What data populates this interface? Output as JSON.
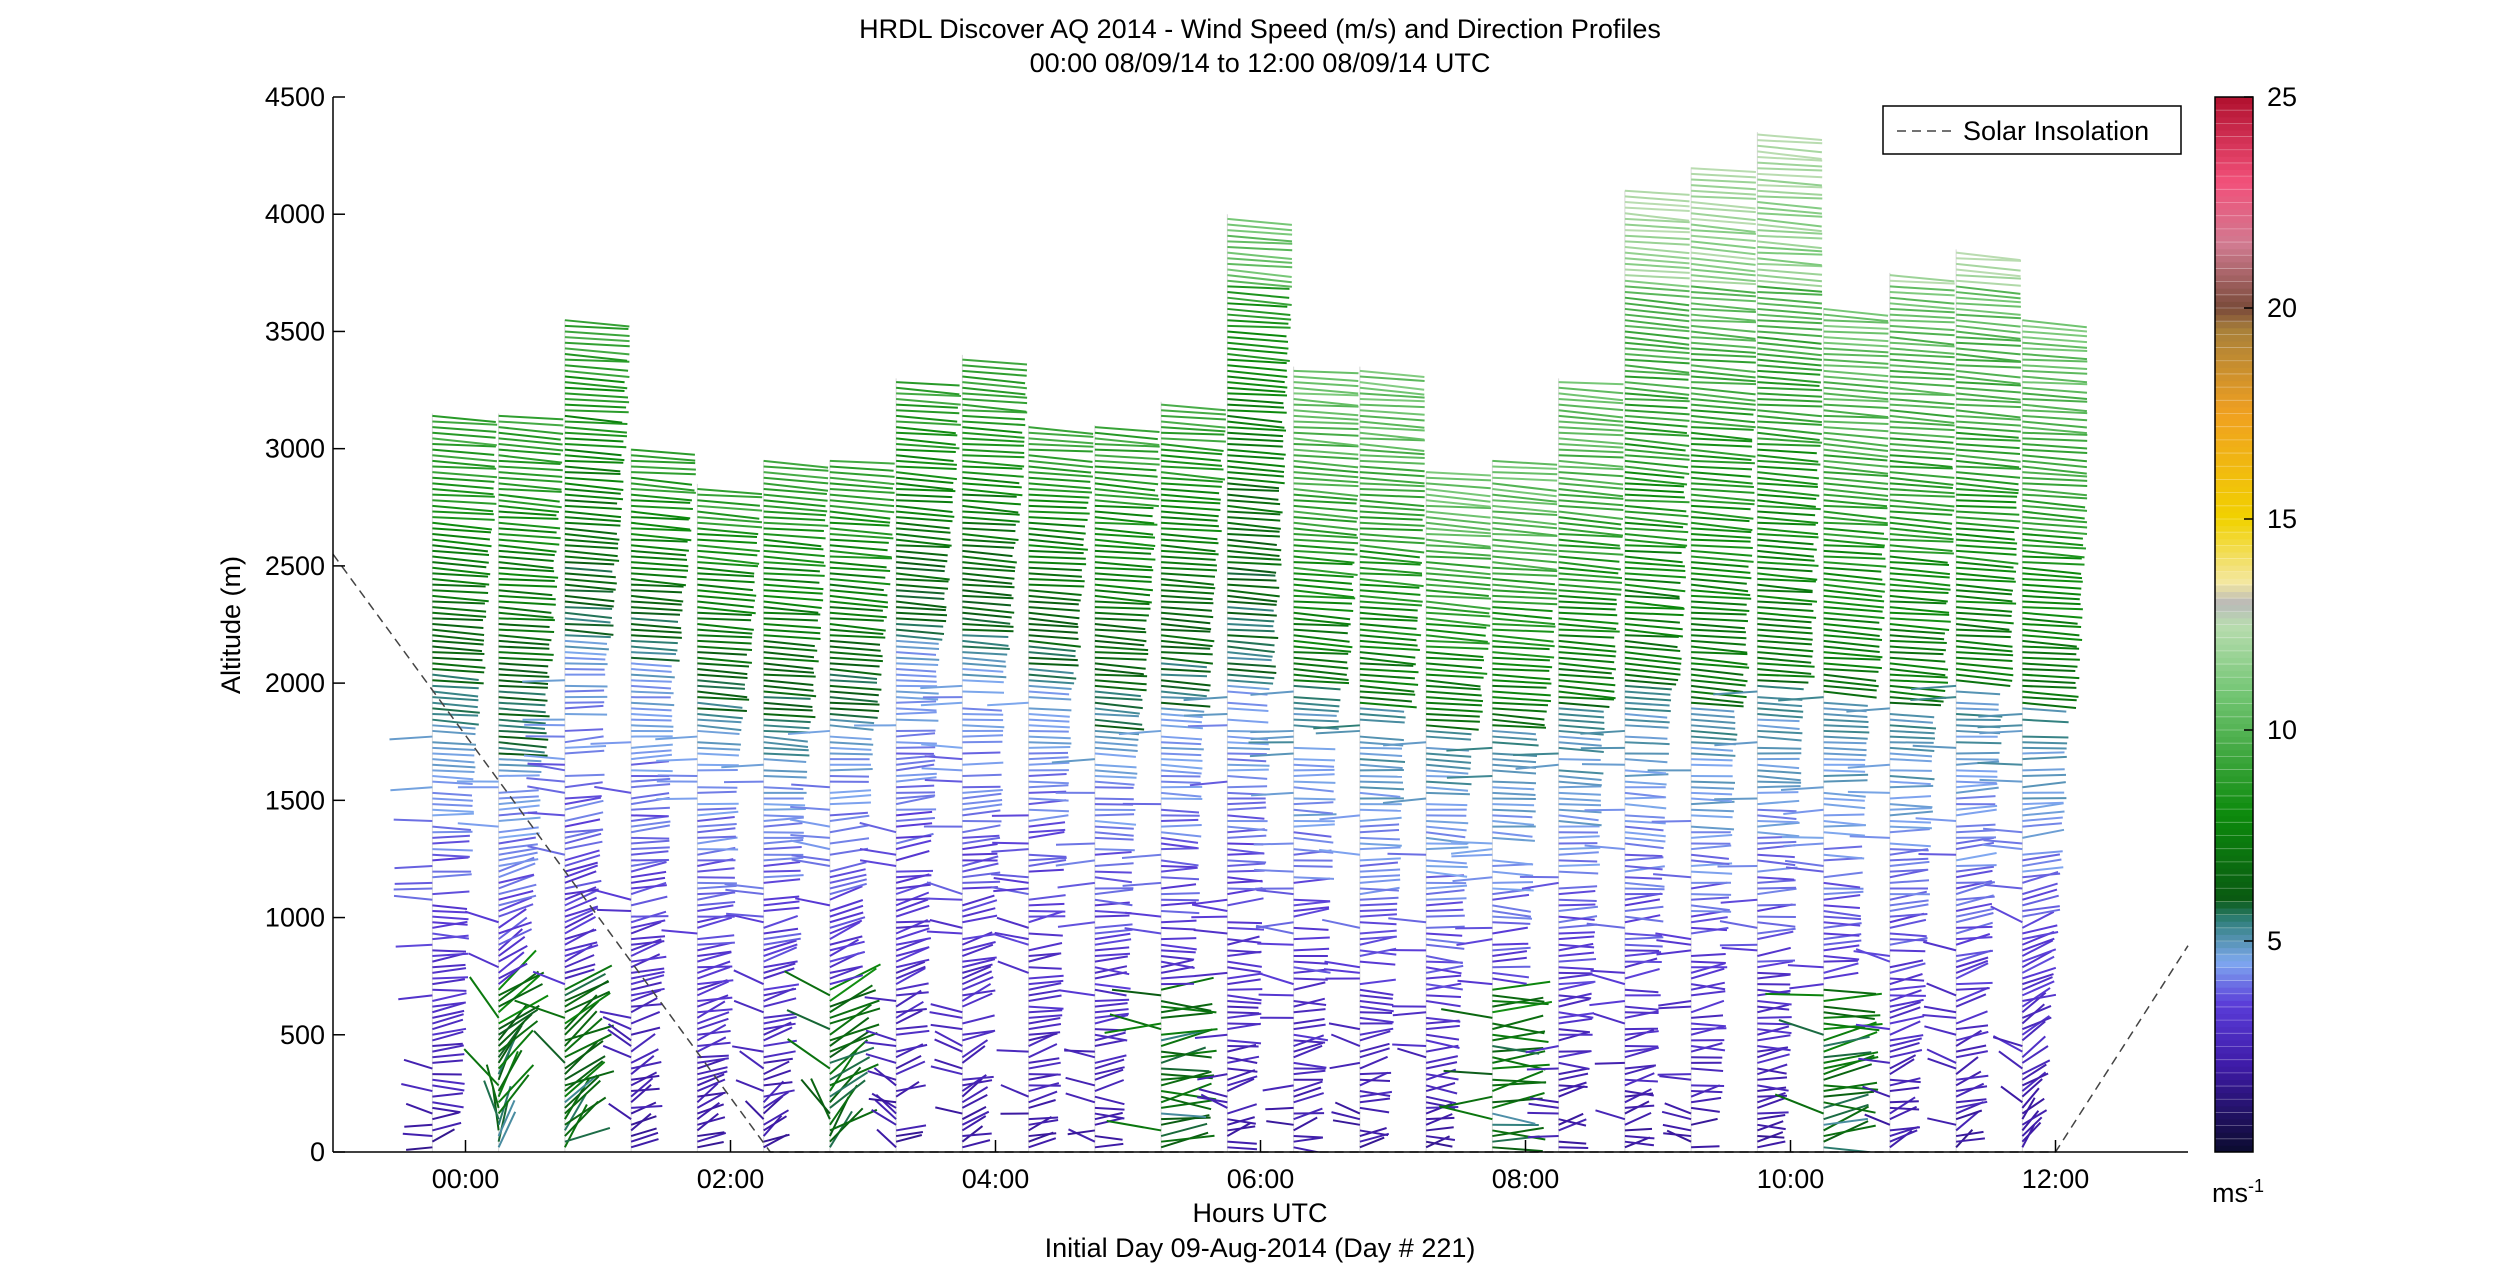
{
  "chart_data": {
    "type": "wind-barb-profile",
    "title": "HRDL Discover AQ 2014 - Wind Speed (m/s) and Direction Profiles",
    "subtitle": "00:00 08/09/14 to 12:00 08/09/14  UTC",
    "xlabel": "Hours UTC",
    "xlabel2": "Initial Day 09-Aug-2014 (Day # 221)",
    "ylabel": "Altitude (m)",
    "xlim": [
      -1.0,
      13.0
    ],
    "ylim": [
      0,
      4500
    ],
    "x_ticks": [
      {
        "value": 0,
        "label": "00:00"
      },
      {
        "value": 2,
        "label": "02:00"
      },
      {
        "value": 4,
        "label": "04:00"
      },
      {
        "value": 6,
        "label": "06:00"
      },
      {
        "value": 8,
        "label": "08:00"
      },
      {
        "value": 10,
        "label": "10:00"
      },
      {
        "value": 12,
        "label": "12:00"
      }
    ],
    "y_ticks": [
      {
        "value": 0,
        "label": "0"
      },
      {
        "value": 500,
        "label": "500"
      },
      {
        "value": 1000,
        "label": "1000"
      },
      {
        "value": 1500,
        "label": "1500"
      },
      {
        "value": 2000,
        "label": "2000"
      },
      {
        "value": 2500,
        "label": "2500"
      },
      {
        "value": 3000,
        "label": "3000"
      },
      {
        "value": 3500,
        "label": "3500"
      },
      {
        "value": 4000,
        "label": "4000"
      },
      {
        "value": 4500,
        "label": "4500"
      }
    ],
    "legend": {
      "label": "Solar Insolation",
      "placement": "top-right"
    },
    "solar_insolation": [
      {
        "x": -1.0,
        "y": 2550
      },
      {
        "x": 2.3,
        "y": 0
      },
      {
        "x": 12.0,
        "y": 0
      },
      {
        "x": 13.0,
        "y": 880
      }
    ],
    "colorbar": {
      "label": "ms-1",
      "range": [
        0,
        25
      ],
      "ticks": [
        {
          "value": 5,
          "label": "5"
        },
        {
          "value": 10,
          "label": "10"
        },
        {
          "value": 15,
          "label": "15"
        },
        {
          "value": 20,
          "label": "20"
        },
        {
          "value": 25,
          "label": "25"
        }
      ],
      "stops": [
        {
          "v": 0,
          "color": "#0b0b2e"
        },
        {
          "v": 2,
          "color": "#3d1aa5"
        },
        {
          "v": 3.5,
          "color": "#5a3cd8"
        },
        {
          "v": 4.5,
          "color": "#7fa8f0"
        },
        {
          "v": 5.5,
          "color": "#2f7f7a"
        },
        {
          "v": 6,
          "color": "#0a5a12"
        },
        {
          "v": 8,
          "color": "#0c8a0c"
        },
        {
          "v": 11,
          "color": "#78c878"
        },
        {
          "v": 12.5,
          "color": "#b9dcb0"
        },
        {
          "v": 13,
          "color": "#b8b8b8"
        },
        {
          "v": 13.5,
          "color": "#f3e7a0"
        },
        {
          "v": 15,
          "color": "#f1d200"
        },
        {
          "v": 17.5,
          "color": "#f0a020"
        },
        {
          "v": 19.5,
          "color": "#a8803a"
        },
        {
          "v": 20,
          "color": "#7a4a3a"
        },
        {
          "v": 21.5,
          "color": "#d07a90"
        },
        {
          "v": 23,
          "color": "#f2507a"
        },
        {
          "v": 25,
          "color": "#b0102e"
        }
      ]
    },
    "profiles": [
      {
        "t": -0.25,
        "top": 3150,
        "sfc": 1800,
        "sfcDir": 80,
        "topDir": 95
      },
      {
        "t": 0.25,
        "top": 3150,
        "sfc": 1700,
        "sfcDir": 15,
        "topDir": 95
      },
      {
        "t": 0.75,
        "top": 3550,
        "sfc": 2200,
        "sfcDir": 45,
        "topDir": 95
      },
      {
        "t": 1.25,
        "top": 3000,
        "sfc": 2100,
        "sfcDir": 60,
        "topDir": 95
      },
      {
        "t": 1.75,
        "top": 2850,
        "sfc": 1800,
        "sfcDir": 60,
        "topDir": 95
      },
      {
        "t": 2.25,
        "top": 2950,
        "sfc": 1700,
        "sfcDir": 55,
        "topDir": 95
      },
      {
        "t": 2.75,
        "top": 2950,
        "sfc": 1800,
        "sfcDir": 40,
        "topDir": 95
      },
      {
        "t": 3.25,
        "top": 3300,
        "sfc": 2200,
        "sfcDir": 60,
        "topDir": 95
      },
      {
        "t": 3.75,
        "top": 3400,
        "sfc": 2100,
        "sfcDir": 60,
        "topDir": 95
      },
      {
        "t": 4.25,
        "top": 3100,
        "sfc": 2000,
        "sfcDir": 70,
        "topDir": 95
      },
      {
        "t": 4.75,
        "top": 3100,
        "sfc": 1800,
        "sfcDir": 85,
        "topDir": 95
      },
      {
        "t": 5.25,
        "top": 3200,
        "sfc": 1900,
        "sfcDir": 85,
        "topDir": 95
      },
      {
        "t": 5.75,
        "top": 4000,
        "sfc": 2000,
        "sfcDir": 80,
        "topDir": 95
      },
      {
        "t": 6.25,
        "top": 3350,
        "sfc": 2000,
        "sfcDir": 80,
        "topDir": 95
      },
      {
        "t": 6.75,
        "top": 3350,
        "sfc": 1900,
        "sfcDir": 80,
        "topDir": 95
      },
      {
        "t": 7.25,
        "top": 2900,
        "sfc": 1800,
        "sfcDir": 85,
        "topDir": 95
      },
      {
        "t": 7.75,
        "top": 2950,
        "sfc": 1800,
        "sfcDir": 85,
        "topDir": 95
      },
      {
        "t": 8.25,
        "top": 3300,
        "sfc": 1900,
        "sfcDir": 85,
        "topDir": 95
      },
      {
        "t": 8.75,
        "top": 4100,
        "sfc": 2000,
        "sfcDir": 80,
        "topDir": 95
      },
      {
        "t": 9.25,
        "top": 4200,
        "sfc": 1900,
        "sfcDir": 80,
        "topDir": 95
      },
      {
        "t": 9.75,
        "top": 4350,
        "sfc": 2000,
        "sfcDir": 80,
        "topDir": 95
      },
      {
        "t": 10.25,
        "top": 3600,
        "sfc": 1950,
        "sfcDir": 80,
        "topDir": 95
      },
      {
        "t": 10.75,
        "top": 3750,
        "sfc": 1900,
        "sfcDir": 70,
        "topDir": 95
      },
      {
        "t": 11.25,
        "top": 3850,
        "sfc": 2000,
        "sfcDir": 60,
        "topDir": 95
      },
      {
        "t": 11.75,
        "top": 3550,
        "sfc": 1900,
        "sfcDir": 45,
        "topDir": 95
      }
    ]
  }
}
